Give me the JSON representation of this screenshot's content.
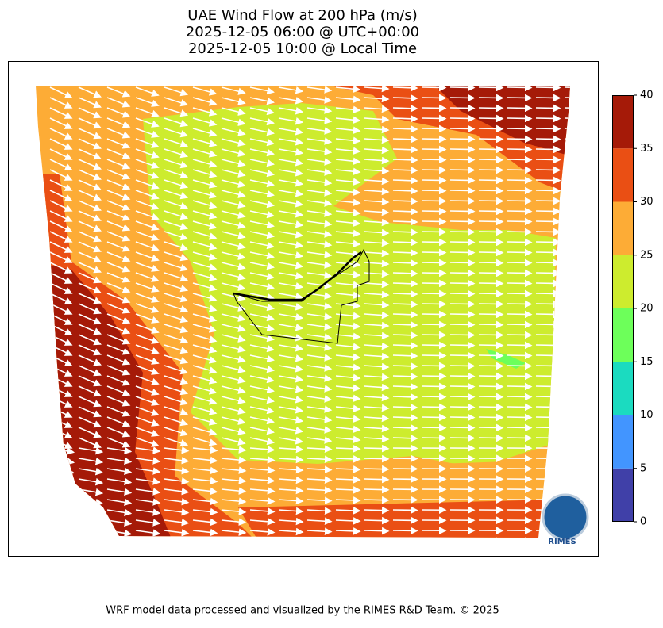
{
  "header": {
    "title": [
      "UAE Wind Flow at 200 hPa (m/s)",
      "2025-12-05 06:00 @ UTC+00:00",
      "2025-12-05 10:00 @ Local Time"
    ]
  },
  "colorbar": {
    "ticks": [
      0,
      5,
      10,
      15,
      20,
      25,
      30,
      35,
      40
    ],
    "colors": [
      "#4040a8",
      "#4295ff",
      "#1bdbc0",
      "#6dff5a",
      "#cdec2e",
      "#fdac36",
      "#ea4f14",
      "#a51a08"
    ]
  },
  "logo": {
    "text": "RIMES"
  },
  "footer": {
    "text": "WRF model data processed and visualized by the RIMES R&D Team. © 2025"
  }
}
